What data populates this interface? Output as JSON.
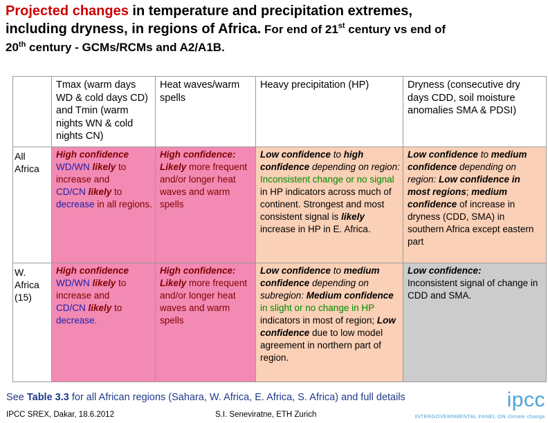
{
  "title": {
    "red_part": "Projected changes",
    "rest_line1": " in temperature and precipitation extremes,",
    "line2_big": "including dryness, in regions of Africa.",
    "line2_small_a": " For end of 21",
    "sup_a": "st",
    "line2_small_b": " century vs end of",
    "line3_a": "20",
    "sup_b": "th",
    "line3_b": " century - GCMs/RCMs and A2/A1B."
  },
  "table": {
    "headers": {
      "temp": "Tmax (warm days WD & cold days CD) and Tmin (warm nights WN & cold nights CN)",
      "heat": "Heat waves/warm spells",
      "hp": "Heavy precipitation (HP)",
      "dry": "Dryness (consecutive dry days CDD, soil moisture anomalies SMA & PDSI)"
    },
    "all_africa": {
      "label": "All Africa",
      "temp": {
        "conf": "High confidence",
        "wd": "WD/WN",
        "likely1": " likely",
        "to1": " to",
        "inc": "increase and",
        "cd": "CD/CN",
        "likely2": " likely",
        "to2": " to",
        "dec": "decrease",
        "rest": " in all regions."
      },
      "heat": {
        "conf": "High confidence:",
        "likely": "Likely",
        "rest": " more frequent and/or longer heat waves and warm spells"
      },
      "hp": {
        "low": "Low confidence",
        "to": " to ",
        "high": "high confidence",
        "dep": " depending on region: ",
        "incons": "Inconsistent change or no signal",
        "mid": " in HP indicators across much of continent. Strongest and most consistent signal is ",
        "likely": "likely",
        "end": " increase in HP in E. Africa."
      },
      "dry": {
        "low": "Low confidence",
        "to": " to ",
        "med": "medium confidence",
        "dep": " depending on region: ",
        "low2": "Low confidence in most regions",
        "semi": "; ",
        "med2": "medium confidence",
        "end": " of increase in dryness (CDD, SMA) in southern Africa except eastern part"
      }
    },
    "w_africa": {
      "label": "W. Africa (15)",
      "temp": {
        "conf": "High confidence",
        "wd": "WD/WN",
        "likely1": " likely",
        "to1": " to",
        "inc": "increase and",
        "cd": "CD/CN",
        "likely2": " likely",
        "to2": " to",
        "dec": "decrease."
      },
      "heat": {
        "conf": "High confidence:",
        "likely": "Likely",
        "rest": " more frequent and/or longer heat waves and warm spells"
      },
      "hp": {
        "low": "Low confidence",
        "to": " to ",
        "med": "medium confidence",
        "dep": " depending on subregion: ",
        "med2": "Medium confidence",
        "change": " in slight or no change in HP",
        "mid": " indicators in most of region; ",
        "low2": "Low confidence",
        "end": " due to low model agreement in northern part of region."
      },
      "dry": {
        "low": "Low confidence:",
        "rest": "Inconsistent signal of change in CDD and SMA."
      }
    }
  },
  "footnote": {
    "pre": "See ",
    "bold": "Table 3.3",
    "post": " for all African regions (Sahara, W. Africa, E. Africa, S. Africa) and full details"
  },
  "footer": {
    "left": "IPCC SREX, Dakar, 18.6.2012",
    "mid": "S.I. Seneviratne, ETH Zurich"
  },
  "logo": {
    "word": "ipcc",
    "sub": "INTERGOVERNMENTAL PANEL ON climate change"
  },
  "colors": {
    "title_red": "#cc0000",
    "pink": "#f28ab3",
    "peach": "#fad0b6",
    "gray": "#cccccc",
    "blue_text": "#1f1fa8",
    "green_text": "#008a00",
    "logo_blue": "#4aa3d6"
  }
}
